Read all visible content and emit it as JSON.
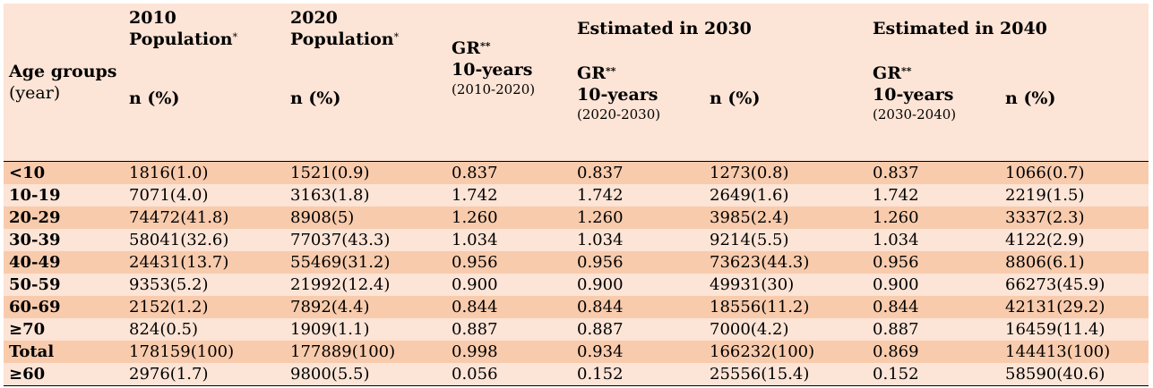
{
  "header": {
    "age_groups": "Age groups",
    "age_unit": "(year)",
    "pop2010_line1": "2010",
    "pop2010_line2": "Population",
    "pop2020_line1": "2020",
    "pop2020_line2": "Population",
    "star": "*",
    "double_star": "**",
    "n_pct": "n (%)",
    "gr": "GR",
    "ten_years": "10-years",
    "period_2010_2020": "(2010-2020)",
    "period_2020_2030": "(2020-2030)",
    "period_2030_2040": "(2030-2040)",
    "est_2030": "Estimated in 2030",
    "est_2040": "Estimated in 2040"
  },
  "rows": [
    {
      "age": "<10",
      "pop2010": "1816(1.0)",
      "pop2020": "1521(0.9)",
      "gr2010_2020": "0.837",
      "gr2020_2030": "0.837",
      "n2030": "1273(0.8)",
      "gr2030_2040": "0.837",
      "n2040": "1066(0.7)",
      "shade": "dark"
    },
    {
      "age": "10-19",
      "pop2010": "7071(4.0)",
      "pop2020": "3163(1.8)",
      "gr2010_2020": "1.742",
      "gr2020_2030": "1.742",
      "n2030": "2649(1.6)",
      "gr2030_2040": "1.742",
      "n2040": "2219(1.5)",
      "shade": "light"
    },
    {
      "age": "20-29",
      "pop2010": "74472(41.8)",
      "pop2020": "8908(5)",
      "gr2010_2020": "1.260",
      "gr2020_2030": "1.260",
      "n2030": "3985(2.4)",
      "gr2030_2040": "1.260",
      "n2040": "3337(2.3)",
      "shade": "dark"
    },
    {
      "age": "30-39",
      "pop2010": "58041(32.6)",
      "pop2020": "77037(43.3)",
      "gr2010_2020": "1.034",
      "gr2020_2030": "1.034",
      "n2030": "9214(5.5)",
      "gr2030_2040": "1.034",
      "n2040": "4122(2.9)",
      "shade": "light"
    },
    {
      "age": "40-49",
      "pop2010": "24431(13.7)",
      "pop2020": "55469(31.2)",
      "gr2010_2020": "0.956",
      "gr2020_2030": "0.956",
      "n2030": "73623(44.3)",
      "gr2030_2040": "0.956",
      "n2040": "8806(6.1)",
      "shade": "dark"
    },
    {
      "age": "50-59",
      "pop2010": "9353(5.2)",
      "pop2020": "21992(12.4)",
      "gr2010_2020": "0.900",
      "gr2020_2030": "0.900",
      "n2030": "49931(30)",
      "gr2030_2040": "0.900",
      "n2040": "66273(45.9)",
      "shade": "light"
    },
    {
      "age": "60-69",
      "pop2010": "2152(1.2)",
      "pop2020": "7892(4.4)",
      "gr2010_2020": "0.844",
      "gr2020_2030": "0.844",
      "n2030": "18556(11.2)",
      "gr2030_2040": "0.844",
      "n2040": "42131(29.2)",
      "shade": "dark"
    },
    {
      "age": "≥70",
      "pop2010": "824(0.5)",
      "pop2020": "1909(1.1)",
      "gr2010_2020": "0.887",
      "gr2020_2030": "0.887",
      "n2030": "7000(4.2)",
      "gr2030_2040": "0.887",
      "n2040": "16459(11.4)",
      "shade": "light"
    },
    {
      "age": "Total",
      "pop2010": "178159(100)",
      "pop2020": "177889(100)",
      "gr2010_2020": "0.998",
      "gr2020_2030": "0.934",
      "n2030": "166232(100)",
      "gr2030_2040": "0.869",
      "n2040": "144413(100)",
      "shade": "dark"
    },
    {
      "age": "≥60",
      "pop2010": "2976(1.7)",
      "pop2020": "9800(5.5)",
      "gr2010_2020": "0.056",
      "gr2020_2030": "0.152",
      "n2030": "25556(15.4)",
      "gr2030_2040": "0.152",
      "n2040": "58590(40.6)",
      "shade": "light"
    }
  ]
}
